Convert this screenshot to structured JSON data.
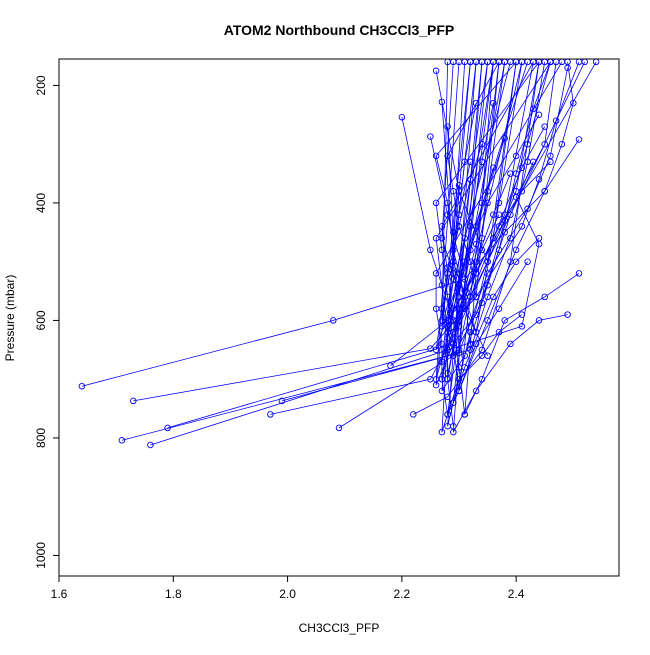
{
  "chart_data": {
    "type": "line",
    "title": "ATOM2 Northbound CH3CCl3_PFP",
    "xlabel": "CH3CCl3_PFP",
    "ylabel": "Pressure (mbar)",
    "xlim": [
      1.6,
      2.58
    ],
    "ylim": [
      1035,
      155
    ],
    "y_reversed": true,
    "grid": false,
    "legend": "none",
    "x_ticks": [
      "1.6",
      "1.8",
      "2.0",
      "2.2",
      "2.4"
    ],
    "y_ticks": [
      "200",
      "400",
      "600",
      "800",
      "1000"
    ],
    "colors": {
      "series": "#0000ff",
      "axis": "#000000"
    },
    "marker": "open-circle",
    "series": [
      {
        "x": [
          1.64,
          2.08,
          2.31,
          2.38,
          2.45,
          2.48,
          2.5,
          2.49
        ],
        "y": [
          712,
          600,
          530,
          450,
          380,
          300,
          230,
          160
        ]
      },
      {
        "x": [
          1.73,
          2.25,
          2.33,
          2.41,
          2.44,
          2.47,
          2.51
        ],
        "y": [
          737,
          648,
          560,
          440,
          360,
          260,
          160
        ]
      },
      {
        "x": [
          1.71,
          2.3,
          2.35,
          2.42,
          2.46,
          2.49
        ],
        "y": [
          804,
          655,
          520,
          410,
          320,
          170
        ]
      },
      {
        "x": [
          1.76,
          2.41,
          2.44,
          2.4,
          2.45,
          2.47
        ],
        "y": [
          812,
          610,
          470,
          390,
          300,
          160
        ]
      },
      {
        "x": [
          1.79,
          2.29,
          2.33,
          2.37,
          2.4,
          2.43,
          2.46
        ],
        "y": [
          783,
          640,
          590,
          480,
          350,
          240,
          160
        ]
      },
      {
        "x": [
          1.97,
          2.25,
          2.3,
          2.35,
          2.4,
          2.44
        ],
        "y": [
          760,
          700,
          610,
          500,
          380,
          160
        ]
      },
      {
        "x": [
          1.99,
          2.32,
          2.35,
          2.39,
          2.42,
          2.45
        ],
        "y": [
          737,
          650,
          560,
          460,
          330,
          160
        ]
      },
      {
        "x": [
          2.09,
          2.29,
          2.34,
          2.38,
          2.42,
          2.46
        ],
        "y": [
          783,
          660,
          570,
          430,
          300,
          160
        ]
      },
      {
        "x": [
          2.18,
          2.28,
          2.33,
          2.38,
          2.43
        ],
        "y": [
          677,
          600,
          520,
          420,
          160
        ]
      },
      {
        "x": [
          2.22,
          2.28,
          2.34,
          2.39,
          2.44
        ],
        "y": [
          760,
          730,
          650,
          500,
          160
        ]
      },
      {
        "x": [
          2.2,
          2.25,
          2.29,
          2.33,
          2.37
        ],
        "y": [
          254,
          480,
          600,
          560,
          160
        ]
      },
      {
        "x": [
          2.25,
          2.28,
          2.32,
          2.36,
          2.4
        ],
        "y": [
          287,
          420,
          560,
          460,
          160
        ]
      },
      {
        "x": [
          2.26,
          2.3,
          2.35,
          2.4
        ],
        "y": [
          175,
          380,
          500,
          160
        ]
      },
      {
        "x": [
          2.27,
          2.29,
          2.33,
          2.37,
          2.41
        ],
        "y": [
          228,
          500,
          620,
          400,
          160
        ]
      },
      {
        "x": [
          2.28,
          2.3,
          2.34,
          2.38
        ],
        "y": [
          270,
          650,
          460,
          160
        ]
      },
      {
        "x": [
          2.51,
          2.45,
          2.38,
          2.34,
          2.31,
          2.36
        ],
        "y": [
          520,
          560,
          600,
          700,
          760,
          160
        ]
      },
      {
        "x": [
          2.51,
          2.45,
          2.4,
          2.35,
          2.3,
          2.37
        ],
        "y": [
          292,
          380,
          480,
          600,
          720,
          160
        ]
      },
      {
        "x": [
          2.49,
          2.44,
          2.39,
          2.33,
          2.29,
          2.34
        ],
        "y": [
          590,
          600,
          640,
          720,
          790,
          160
        ]
      },
      {
        "x": [
          2.45,
          2.41,
          2.36,
          2.32,
          2.28,
          2.33
        ],
        "y": [
          270,
          340,
          460,
          620,
          780,
          160
        ]
      },
      {
        "x": [
          2.44,
          2.4,
          2.36,
          2.31,
          2.29,
          2.35
        ],
        "y": [
          460,
          500,
          560,
          680,
          740,
          160
        ]
      },
      {
        "x": [
          2.43,
          2.39,
          2.35,
          2.31,
          2.27,
          2.32
        ],
        "y": [
          330,
          420,
          540,
          660,
          720,
          160
        ]
      },
      {
        "x": [
          2.42,
          2.37,
          2.33,
          2.3,
          2.28,
          2.36
        ],
        "y": [
          500,
          580,
          640,
          720,
          760,
          160
        ]
      },
      {
        "x": [
          2.41,
          2.37,
          2.34,
          2.3,
          2.27,
          2.31
        ],
        "y": [
          590,
          620,
          660,
          700,
          790,
          160
        ]
      },
      {
        "x": [
          2.38,
          2.35,
          2.32,
          2.29,
          2.27,
          2.33
        ],
        "y": [
          290,
          380,
          480,
          580,
          670,
          160
        ]
      },
      {
        "x": [
          2.37,
          2.34,
          2.31,
          2.29,
          2.26,
          2.32
        ],
        "y": [
          420,
          480,
          560,
          640,
          710,
          160
        ]
      },
      {
        "x": [
          2.36,
          2.33,
          2.3,
          2.28,
          2.26,
          2.3
        ],
        "y": [
          340,
          440,
          540,
          630,
          700,
          160
        ]
      },
      {
        "x": [
          2.35,
          2.33,
          2.31,
          2.29,
          2.27,
          2.29
        ],
        "y": [
          660,
          620,
          580,
          520,
          460,
          160
        ]
      },
      {
        "x": [
          2.34,
          2.32,
          2.3,
          2.28,
          2.27,
          2.28
        ],
        "y": [
          300,
          360,
          440,
          520,
          600,
          160
        ]
      },
      {
        "x": [
          2.33,
          2.31,
          2.3,
          2.28,
          2.27,
          2.39
        ],
        "y": [
          230,
          330,
          420,
          510,
          610,
          160
        ]
      },
      {
        "x": [
          2.32,
          2.31,
          2.29,
          2.28,
          2.26,
          2.4
        ],
        "y": [
          640,
          560,
          480,
          400,
          320,
          160
        ]
      },
      {
        "x": [
          2.32,
          2.3,
          2.29,
          2.27,
          2.26,
          2.42
        ],
        "y": [
          330,
          420,
          500,
          580,
          650,
          160
        ]
      },
      {
        "x": [
          2.31,
          2.3,
          2.29,
          2.28,
          2.27,
          2.43
        ],
        "y": [
          760,
          680,
          600,
          520,
          440,
          160
        ]
      },
      {
        "x": [
          2.3,
          2.29,
          2.28,
          2.27,
          2.26,
          2.44
        ],
        "y": [
          720,
          640,
          560,
          480,
          400,
          160
        ]
      },
      {
        "x": [
          2.29,
          2.28,
          2.28,
          2.27,
          2.26,
          2.46
        ],
        "y": [
          780,
          700,
          620,
          540,
          460,
          160
        ]
      },
      {
        "x": [
          2.28,
          2.27,
          2.27,
          2.26,
          2.26,
          2.48
        ],
        "y": [
          760,
          700,
          640,
          580,
          520,
          160
        ]
      },
      {
        "x": [
          2.46,
          2.41,
          2.37,
          2.33,
          2.3,
          2.52
        ],
        "y": [
          330,
          380,
          440,
          520,
          600,
          160
        ]
      },
      {
        "x": [
          2.44,
          2.4,
          2.35,
          2.31,
          2.28,
          2.54
        ],
        "y": [
          250,
          320,
          400,
          500,
          600,
          160
        ]
      },
      {
        "x": [
          2.39,
          2.36,
          2.33,
          2.3,
          2.28,
          2.36
        ],
        "y": [
          350,
          420,
          500,
          580,
          650,
          160
        ]
      },
      {
        "x": [
          2.36,
          2.34,
          2.32,
          2.3,
          2.29,
          2.34
        ],
        "y": [
          230,
          330,
          440,
          560,
          660,
          160
        ]
      },
      {
        "x": [
          2.34,
          2.33,
          2.31,
          2.29,
          2.27,
          2.35
        ],
        "y": [
          400,
          470,
          550,
          620,
          700,
          160
        ]
      },
      {
        "x": [
          2.33,
          2.32,
          2.3,
          2.29,
          2.28,
          2.37
        ],
        "y": [
          560,
          500,
          440,
          380,
          320,
          160
        ]
      },
      {
        "x": [
          2.31,
          2.3,
          2.3,
          2.29,
          2.28,
          2.38
        ],
        "y": [
          460,
          520,
          580,
          640,
          700,
          160
        ]
      },
      {
        "x": [
          2.3,
          2.29,
          2.29,
          2.28,
          2.28,
          2.41
        ],
        "y": [
          370,
          450,
          530,
          610,
          690,
          160
        ]
      }
    ]
  }
}
